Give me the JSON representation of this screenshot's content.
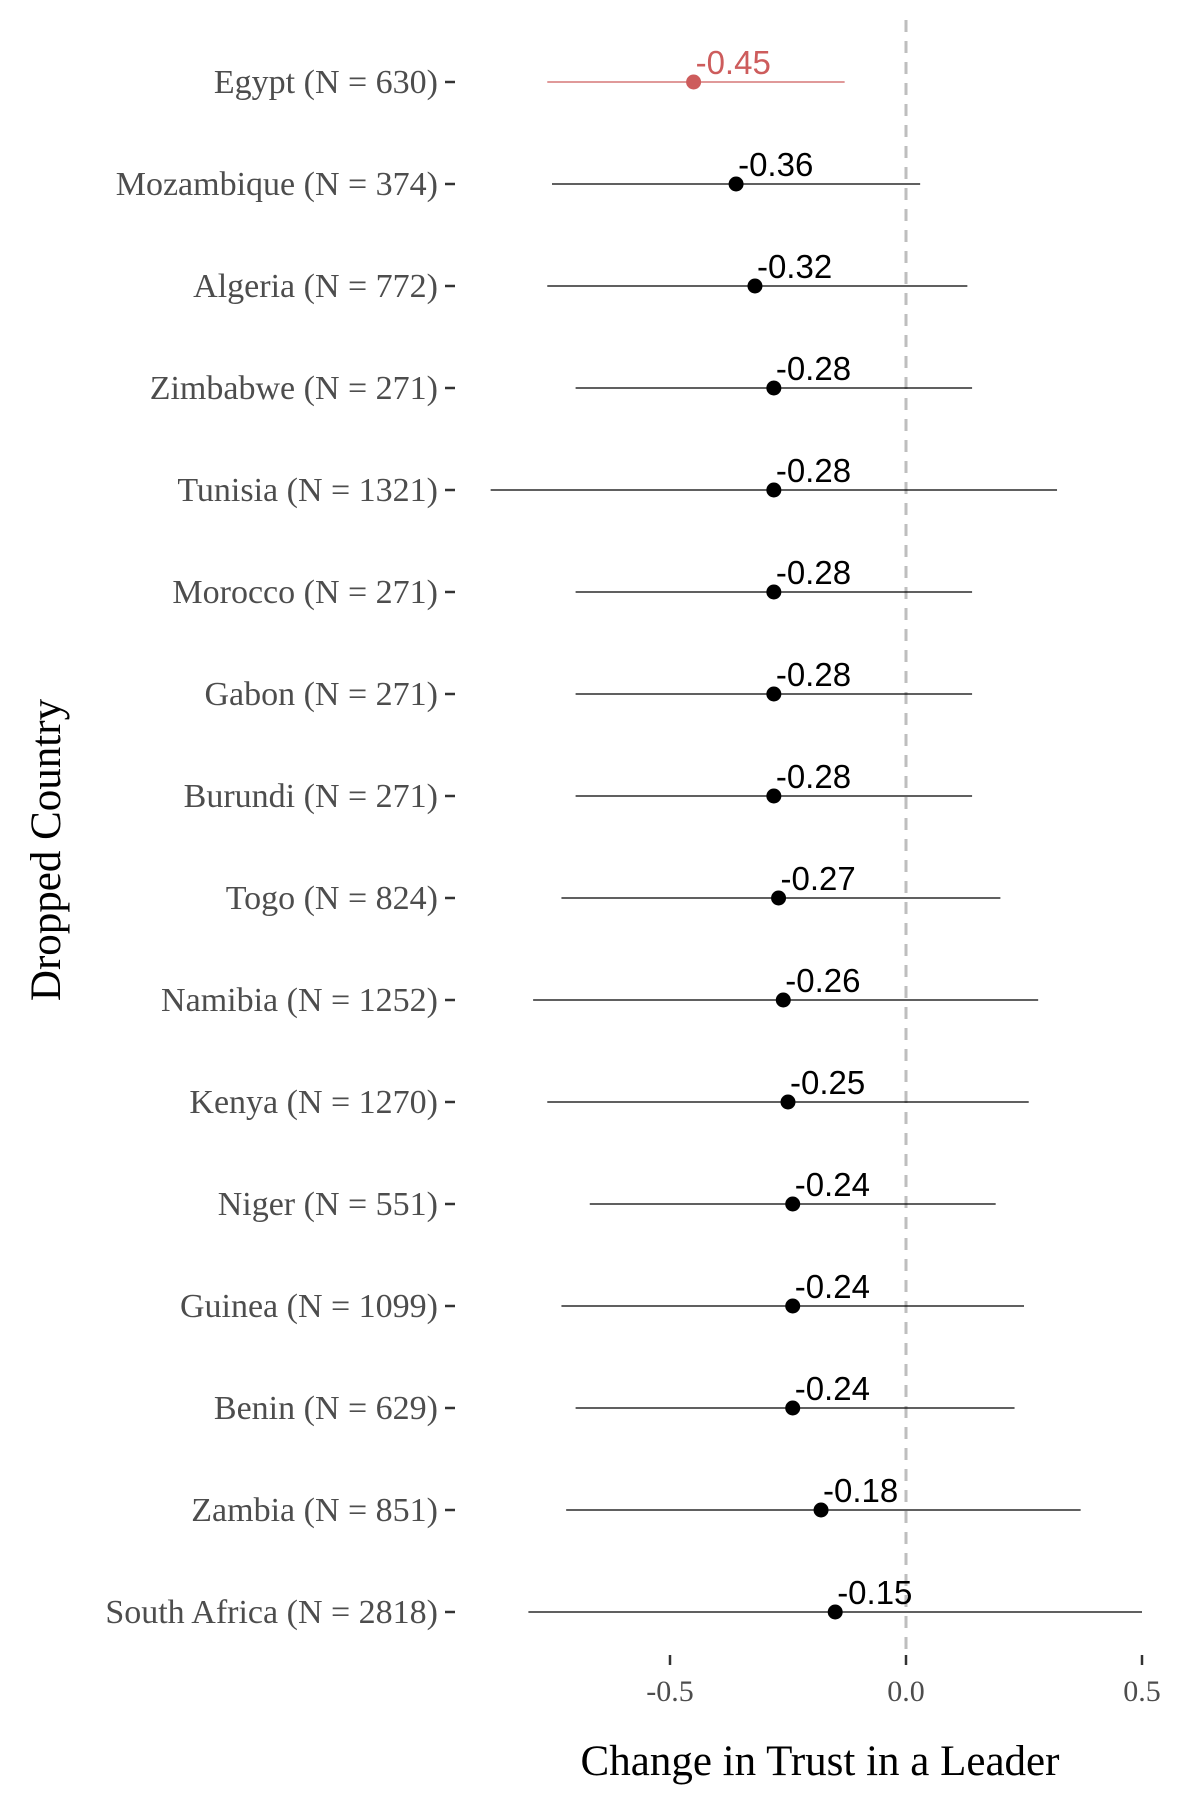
{
  "chart_data": {
    "type": "scatter",
    "subtype": "dot-and-whisker",
    "title": "",
    "xlabel": "Change in Trust in a Leader",
    "ylabel": "Dropped Country",
    "xlim": [
      -0.92,
      0.55
    ],
    "x_ticks": [
      -0.5,
      0.0,
      0.5
    ],
    "x_tick_labels": [
      "-0.5",
      "0.0",
      "0.5"
    ],
    "reference_line": {
      "x": 0.0,
      "style": "dashed",
      "color": "#bebebe"
    },
    "grid": false,
    "legend": "none",
    "colors": {
      "default": "#000000",
      "highlight": "#cd5c5c"
    },
    "categories": [
      "Egypt (N = 630)",
      "Mozambique (N = 374)",
      "Algeria (N = 772)",
      "Zimbabwe (N = 271)",
      "Tunisia (N = 1321)",
      "Morocco (N = 271)",
      "Gabon (N = 271)",
      "Burundi (N = 271)",
      "Togo (N = 824)",
      "Namibia (N = 1252)",
      "Kenya (N = 1270)",
      "Niger (N = 551)",
      "Guinea (N = 1099)",
      "Benin (N = 629)",
      "Zambia (N = 851)",
      "South Africa (N = 2818)"
    ],
    "points": [
      {
        "estimate": -0.45,
        "lower": -0.76,
        "upper": -0.13,
        "label": "-0.45",
        "highlight": true
      },
      {
        "estimate": -0.36,
        "lower": -0.75,
        "upper": 0.03,
        "label": "-0.36",
        "highlight": false
      },
      {
        "estimate": -0.32,
        "lower": -0.76,
        "upper": 0.13,
        "label": "-0.32",
        "highlight": false
      },
      {
        "estimate": -0.28,
        "lower": -0.7,
        "upper": 0.14,
        "label": "-0.28",
        "highlight": false
      },
      {
        "estimate": -0.28,
        "lower": -0.88,
        "upper": 0.32,
        "label": "-0.28",
        "highlight": false
      },
      {
        "estimate": -0.28,
        "lower": -0.7,
        "upper": 0.14,
        "label": "-0.28",
        "highlight": false
      },
      {
        "estimate": -0.28,
        "lower": -0.7,
        "upper": 0.14,
        "label": "-0.28",
        "highlight": false
      },
      {
        "estimate": -0.28,
        "lower": -0.7,
        "upper": 0.14,
        "label": "-0.28",
        "highlight": false
      },
      {
        "estimate": -0.27,
        "lower": -0.73,
        "upper": 0.2,
        "label": "-0.27",
        "highlight": false
      },
      {
        "estimate": -0.26,
        "lower": -0.79,
        "upper": 0.28,
        "label": "-0.26",
        "highlight": false
      },
      {
        "estimate": -0.25,
        "lower": -0.76,
        "upper": 0.26,
        "label": "-0.25",
        "highlight": false
      },
      {
        "estimate": -0.24,
        "lower": -0.67,
        "upper": 0.19,
        "label": "-0.24",
        "highlight": false
      },
      {
        "estimate": -0.24,
        "lower": -0.73,
        "upper": 0.25,
        "label": "-0.24",
        "highlight": false
      },
      {
        "estimate": -0.24,
        "lower": -0.7,
        "upper": 0.23,
        "label": "-0.24",
        "highlight": false
      },
      {
        "estimate": -0.18,
        "lower": -0.72,
        "upper": 0.37,
        "label": "-0.18",
        "highlight": false
      },
      {
        "estimate": -0.15,
        "lower": -0.8,
        "upper": 0.5,
        "label": "-0.15",
        "highlight": false
      }
    ]
  }
}
